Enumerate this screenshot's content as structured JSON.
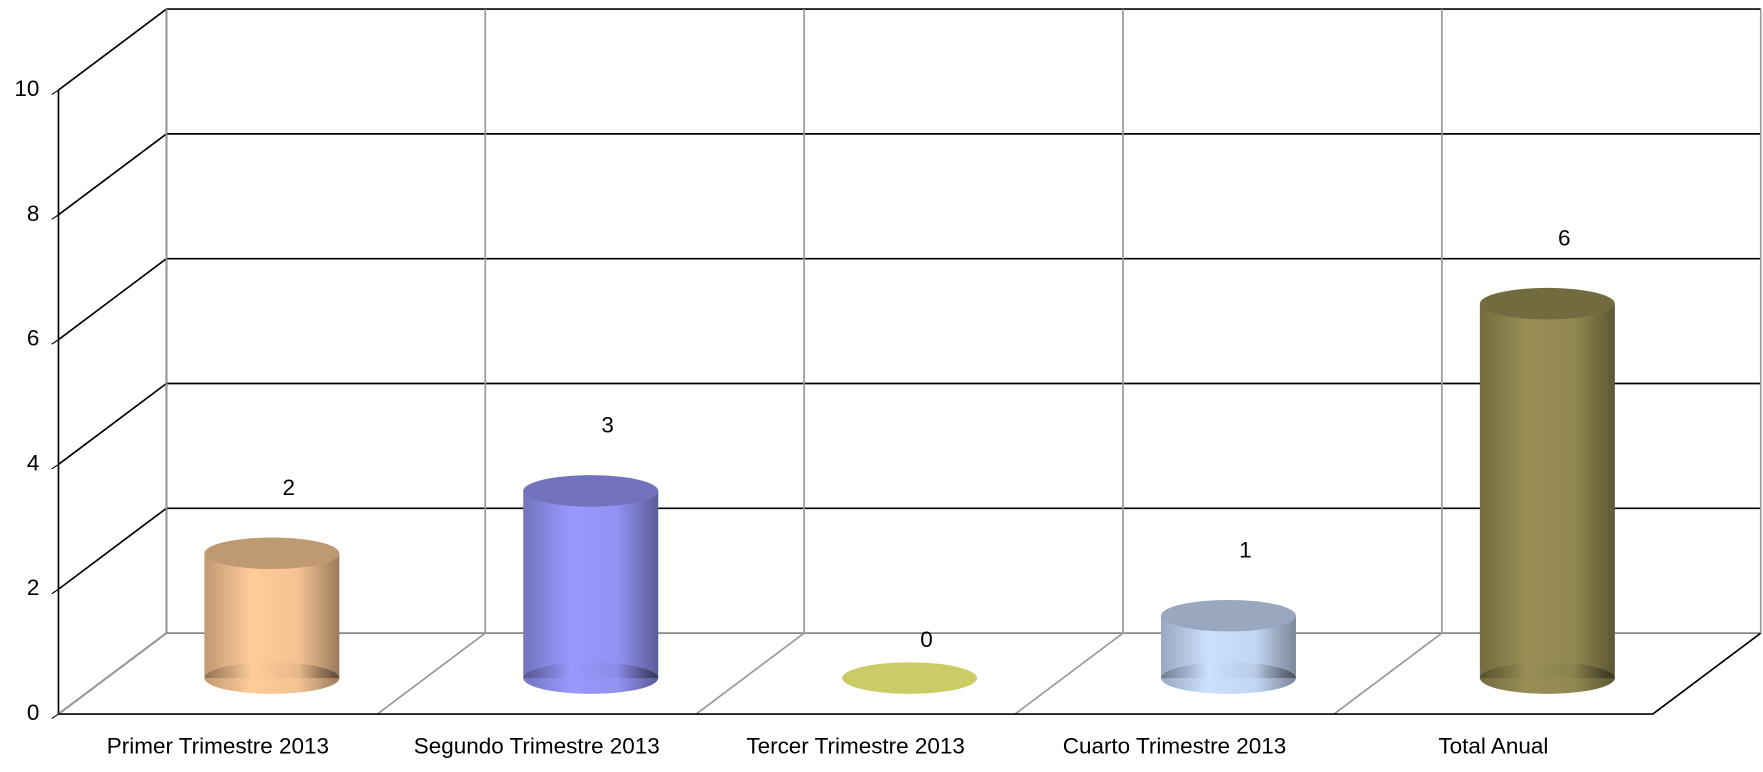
{
  "chart_data": {
    "type": "bar3d",
    "categories": [
      "Primer Trimestre 2013",
      "Segundo Trimestre 2013",
      "Tercer Trimestre 2013",
      "Cuarto Trimestre 2013",
      "Total Anual"
    ],
    "values": [
      2,
      3,
      0,
      1,
      6
    ],
    "colors": [
      "#ffcc99",
      "#9999ff",
      "#cccc66",
      "#cce0ff",
      "#998f55"
    ],
    "ylim": [
      0,
      10
    ],
    "yticks": [
      0,
      2,
      4,
      6,
      8,
      10
    ],
    "grid": true
  }
}
